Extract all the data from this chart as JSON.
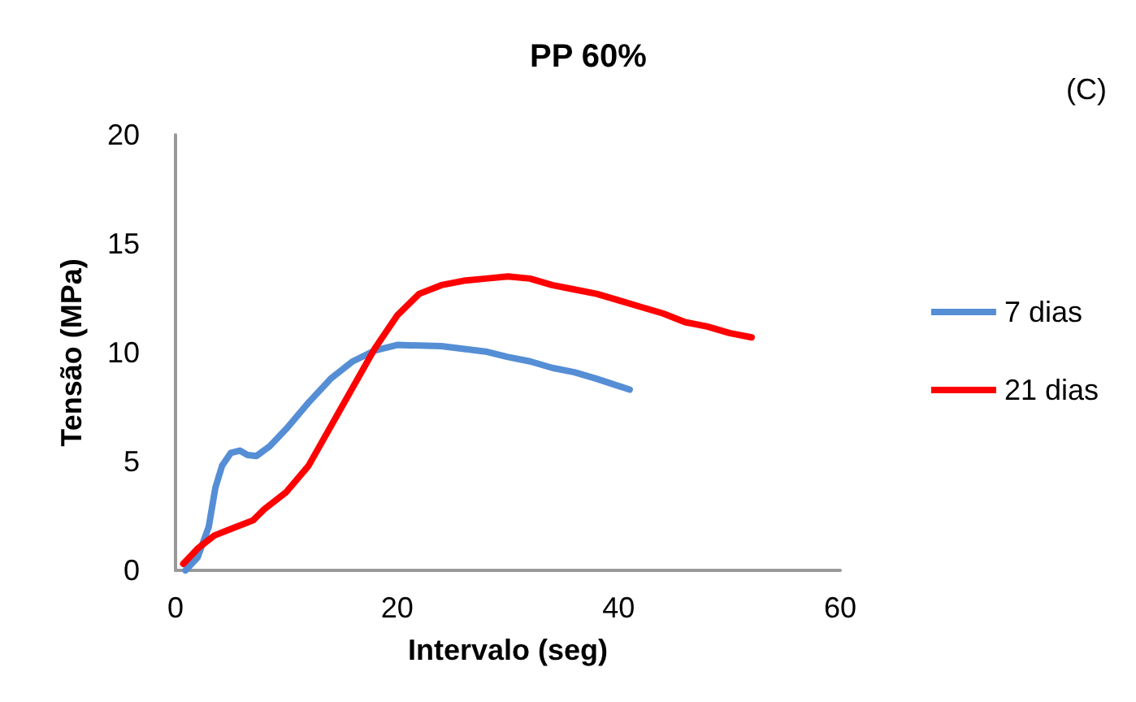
{
  "chart_data": {
    "type": "line",
    "title": "PP 60%",
    "xlabel": "Intervalo (seg)",
    "ylabel": "Tensão (MPa)",
    "annotations": [
      "(C)"
    ],
    "xlim": [
      0,
      60
    ],
    "xticks": [
      0,
      20,
      40,
      60
    ],
    "ylim": [
      0,
      20
    ],
    "yticks": [
      0,
      5,
      10,
      15,
      20
    ],
    "grid": false,
    "legend": "right",
    "marker": "none",
    "line_style": "solid",
    "series": [
      {
        "name": "7 dias",
        "color": "#558ed5",
        "x": [
          0.9,
          2,
          3,
          3.6,
          4.2,
          5,
          5.8,
          6.5,
          7.3,
          8.5,
          10,
          12,
          14,
          16,
          18,
          20,
          24,
          28,
          30,
          32,
          34,
          36,
          38,
          41
        ],
        "values": [
          0,
          0.6,
          2,
          3.8,
          4.8,
          5.4,
          5.5,
          5.3,
          5.25,
          5.7,
          6.5,
          7.7,
          8.8,
          9.6,
          10.1,
          10.35,
          10.3,
          10.05,
          9.8,
          9.6,
          9.3,
          9.1,
          8.8,
          8.3
        ]
      },
      {
        "name": "21 dias",
        "color": "#ff0000",
        "x": [
          0.7,
          2,
          3.5,
          5,
          7,
          8,
          10,
          12,
          14,
          16,
          18,
          20,
          22,
          24,
          26,
          28,
          30,
          32,
          34,
          36,
          38,
          40,
          42,
          44,
          46,
          48,
          50,
          52
        ],
        "values": [
          0.3,
          1,
          1.6,
          1.9,
          2.3,
          2.8,
          3.6,
          4.8,
          6.6,
          8.4,
          10.2,
          11.7,
          12.7,
          13.1,
          13.3,
          13.4,
          13.5,
          13.4,
          13.1,
          12.9,
          12.7,
          12.4,
          12.1,
          11.8,
          11.4,
          11.2,
          10.9,
          10.7
        ]
      }
    ]
  }
}
